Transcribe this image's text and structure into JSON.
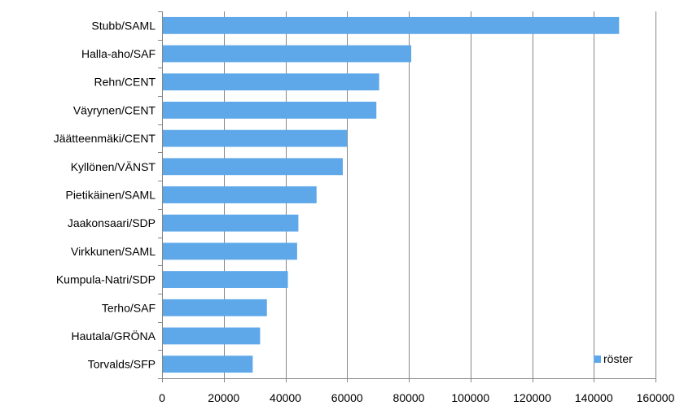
{
  "chart_data": {
    "type": "bar",
    "orientation": "horizontal",
    "categories": [
      "Stubb/SAML",
      "Halla-aho/SAF",
      "Rehn/CENT",
      "Väyrynen/CENT",
      "Jäätteenmäki/CENT",
      "Kyllönen/VÄNST",
      "Pietikäinen/SAML",
      "Jaakonsaari/SDP",
      "Virkkunen/SAML",
      "Kumpula-Natri/SDP",
      "Terho/SAF",
      "Hautala/GRÖNA",
      "Torvalds/SFP"
    ],
    "series": [
      {
        "name": "röster",
        "color": "#5ea8ea",
        "values": [
          148200,
          80800,
          70400,
          69500,
          60000,
          58600,
          50100,
          44200,
          43800,
          40800,
          34000,
          31800,
          29400
        ]
      }
    ],
    "xlim": [
      0,
      160000
    ],
    "x_ticks": [
      0,
      20000,
      40000,
      60000,
      80000,
      100000,
      120000,
      140000,
      160000
    ],
    "x_tick_labels": [
      "0",
      "20000",
      "40000",
      "60000",
      "80000",
      "100000",
      "120000",
      "140000",
      "160000"
    ],
    "grid": "vertical",
    "legend_position": "inside-bottom-right",
    "title": "",
    "xlabel": "",
    "ylabel": ""
  }
}
